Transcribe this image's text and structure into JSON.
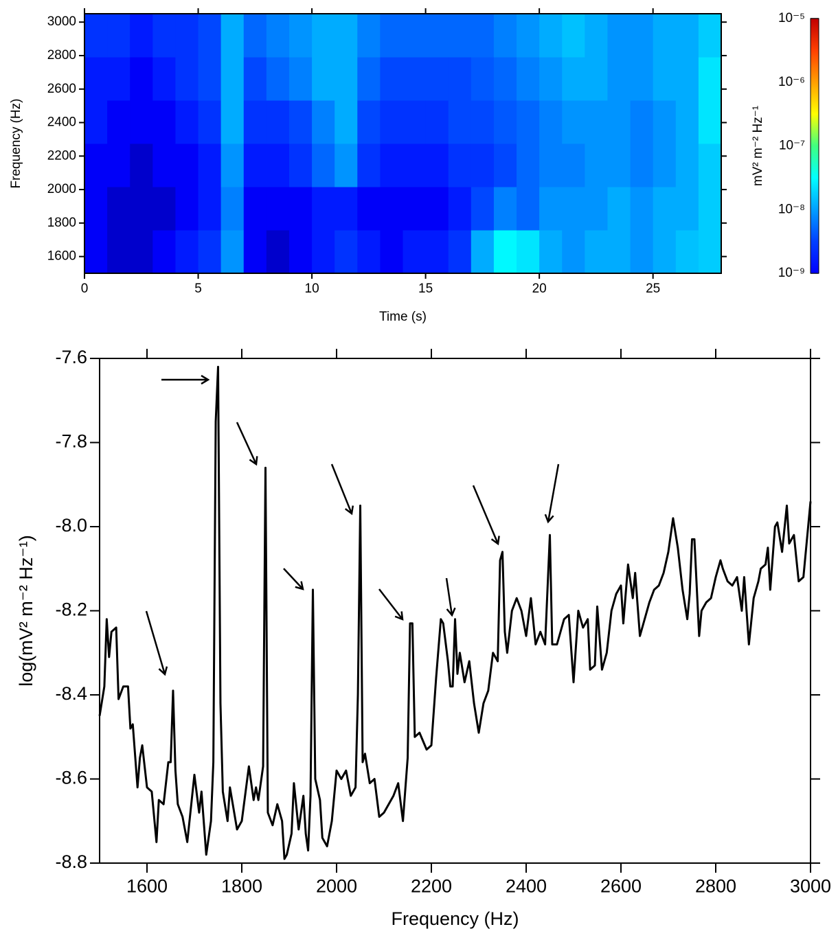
{
  "chart_data": [
    {
      "type": "heatmap",
      "xlabel": "Time (s)",
      "ylabel": "Frequency (Hz)",
      "xlim": [
        0,
        28
      ],
      "ylim": [
        1500,
        3050
      ],
      "xticks": [
        0,
        5,
        10,
        15,
        20,
        25
      ],
      "yticks": [
        1600,
        1800,
        2000,
        2200,
        2400,
        2600,
        2800,
        3000
      ],
      "z": [
        [
          3e-09,
          2e-09,
          2e-09,
          3e-09,
          4e-09,
          5e-09,
          1.2e-08,
          3e-09,
          2e-09,
          3e-09,
          4e-09,
          5e-09,
          4e-09,
          3e-09,
          4e-09,
          4e-09,
          5e-09,
          1.5e-08,
          3e-08,
          2.5e-08,
          1.5e-08,
          1.2e-08,
          1.5e-08,
          1.5e-08,
          1.2e-08,
          1.5e-08,
          1.8e-08,
          2e-08
        ],
        [
          3e-09,
          2e-09,
          2e-09,
          2e-09,
          3e-09,
          4e-09,
          1e-08,
          3e-09,
          3e-09,
          3e-09,
          4e-09,
          4e-09,
          3e-09,
          3e-09,
          3e-09,
          3e-09,
          4e-09,
          6e-09,
          1e-08,
          8e-09,
          1.2e-08,
          1.2e-08,
          1.2e-08,
          1.5e-08,
          1.2e-08,
          1.5e-08,
          1.5e-08,
          2e-08
        ],
        [
          3e-09,
          3e-09,
          2e-09,
          3e-09,
          3e-09,
          4e-09,
          1.2e-08,
          4e-09,
          4e-09,
          5e-09,
          8e-09,
          1.2e-08,
          5e-09,
          4e-09,
          4e-09,
          4e-09,
          5e-09,
          5e-09,
          6e-09,
          8e-09,
          1e-08,
          1e-08,
          1.2e-08,
          1.2e-08,
          1e-08,
          1.2e-08,
          1.5e-08,
          2e-08
        ],
        [
          4e-09,
          3e-09,
          3e-09,
          3e-09,
          4e-09,
          5e-09,
          1.5e-08,
          5e-09,
          5e-09,
          6e-09,
          1e-08,
          1.5e-08,
          6e-09,
          5e-09,
          5e-09,
          5e-09,
          6e-09,
          6e-09,
          7e-09,
          8e-09,
          1e-08,
          1.2e-08,
          1.2e-08,
          1.2e-08,
          1e-08,
          1.2e-08,
          1.5e-08,
          2.5e-08
        ],
        [
          4e-09,
          4e-09,
          3e-09,
          4e-09,
          5e-09,
          6e-09,
          1.5e-08,
          6e-09,
          8e-09,
          1e-08,
          1.5e-08,
          1.5e-08,
          8e-09,
          6e-09,
          6e-09,
          6e-09,
          6e-09,
          7e-09,
          8e-09,
          1e-08,
          1.2e-08,
          1.5e-08,
          1.5e-08,
          1.2e-08,
          1.2e-08,
          1.5e-08,
          1.5e-08,
          2.5e-08
        ],
        [
          5e-09,
          5e-09,
          4e-09,
          5e-09,
          5e-09,
          6e-09,
          1.5e-08,
          8e-09,
          1e-08,
          1.2e-08,
          1.5e-08,
          1.5e-08,
          1e-08,
          8e-09,
          8e-09,
          8e-09,
          8e-09,
          8e-09,
          1e-08,
          1.2e-08,
          1.5e-08,
          1.8e-08,
          1.5e-08,
          1.2e-08,
          1.2e-08,
          1.5e-08,
          1.5e-08,
          2e-08
        ]
      ],
      "colorbar": {
        "label": "mV² m⁻² Hz⁻¹",
        "log": true,
        "colormap": "jet",
        "clim": [
          1e-09,
          1e-05
        ],
        "ticks": [
          {
            "value": 1e-09,
            "label": "10⁻⁹"
          },
          {
            "value": 1e-08,
            "label": "10⁻⁸"
          },
          {
            "value": 1e-07,
            "label": "10⁻⁷"
          },
          {
            "value": 1e-06,
            "label": "10⁻⁶"
          },
          {
            "value": 1e-05,
            "label": "10⁻⁵"
          }
        ]
      }
    },
    {
      "type": "line",
      "xlabel": "Frequency (Hz)",
      "ylabel": "log(mV² m⁻² Hz⁻¹)",
      "xlim": [
        1500,
        3000
      ],
      "ylim": [
        -8.8,
        -7.6
      ],
      "xticks": [
        1600,
        1800,
        2000,
        2200,
        2400,
        2600,
        2800,
        3000
      ],
      "yticks": [
        -7.6,
        -7.8,
        {
          "value": -8,
          "label": "-8.0"
        },
        -8.2,
        -8.4,
        -8.6,
        -8.8
      ],
      "x": [
        1500,
        1510,
        1515,
        1520,
        1525,
        1535,
        1540,
        1550,
        1560,
        1565,
        1570,
        1580,
        1585,
        1590,
        1600,
        1610,
        1620,
        1625,
        1635,
        1645,
        1650,
        1655,
        1660,
        1665,
        1675,
        1685,
        1700,
        1710,
        1715,
        1725,
        1735,
        1740,
        1745,
        1750,
        1755,
        1760,
        1770,
        1775,
        1790,
        1800,
        1815,
        1825,
        1830,
        1835,
        1845,
        1850,
        1855,
        1865,
        1875,
        1885,
        1890,
        1895,
        1905,
        1910,
        1920,
        1930,
        1935,
        1940,
        1945,
        1950,
        1955,
        1965,
        1970,
        1980,
        1990,
        2000,
        2010,
        2020,
        2030,
        2040,
        2045,
        2050,
        2055,
        2060,
        2070,
        2080,
        2090,
        2100,
        2110,
        2120,
        2130,
        2140,
        2150,
        2155,
        2160,
        2165,
        2175,
        2190,
        2200,
        2210,
        2220,
        2225,
        2235,
        2240,
        2245,
        2250,
        2255,
        2260,
        2270,
        2280,
        2290,
        2300,
        2310,
        2320,
        2330,
        2340,
        2345,
        2350,
        2355,
        2360,
        2370,
        2380,
        2390,
        2400,
        2410,
        2420,
        2430,
        2440,
        2450,
        2455,
        2465,
        2480,
        2490,
        2500,
        2510,
        2520,
        2530,
        2535,
        2545,
        2550,
        2560,
        2570,
        2580,
        2590,
        2600,
        2605,
        2615,
        2625,
        2630,
        2640,
        2650,
        2660,
        2670,
        2680,
        2690,
        2700,
        2710,
        2720,
        2730,
        2740,
        2745,
        2750,
        2755,
        2765,
        2770,
        2780,
        2790,
        2800,
        2810,
        2815,
        2825,
        2835,
        2845,
        2855,
        2860,
        2870,
        2880,
        2890,
        2895,
        2905,
        2910,
        2915,
        2925,
        2930,
        2940,
        2950,
        2955,
        2965,
        2975,
        2985,
        3000
      ],
      "series": [
        {
          "color": "#000000",
          "values": [
            -8.45,
            -8.38,
            -8.22,
            -8.31,
            -8.25,
            -8.24,
            -8.41,
            -8.38,
            -8.38,
            -8.48,
            -8.47,
            -8.62,
            -8.55,
            -8.52,
            -8.62,
            -8.63,
            -8.75,
            -8.65,
            -8.66,
            -8.56,
            -8.56,
            -8.39,
            -8.58,
            -8.66,
            -8.69,
            -8.75,
            -8.59,
            -8.68,
            -8.63,
            -8.78,
            -8.7,
            -8.56,
            -7.75,
            -7.62,
            -8.42,
            -8.63,
            -8.7,
            -8.62,
            -8.72,
            -8.7,
            -8.57,
            -8.65,
            -8.62,
            -8.65,
            -8.57,
            -7.86,
            -8.68,
            -8.71,
            -8.66,
            -8.7,
            -8.79,
            -8.78,
            -8.73,
            -8.61,
            -8.72,
            -8.64,
            -8.73,
            -8.77,
            -8.64,
            -8.15,
            -8.6,
            -8.65,
            -8.74,
            -8.76,
            -8.7,
            -8.58,
            -8.6,
            -8.58,
            -8.64,
            -8.62,
            -8.4,
            -7.95,
            -8.56,
            -8.54,
            -8.61,
            -8.6,
            -8.69,
            -8.68,
            -8.66,
            -8.64,
            -8.61,
            -8.7,
            -8.55,
            -8.23,
            -8.23,
            -8.5,
            -8.49,
            -8.53,
            -8.52,
            -8.36,
            -8.22,
            -8.23,
            -8.32,
            -8.38,
            -8.38,
            -8.22,
            -8.35,
            -8.3,
            -8.37,
            -8.32,
            -8.42,
            -8.49,
            -8.42,
            -8.39,
            -8.3,
            -8.32,
            -8.08,
            -8.06,
            -8.25,
            -8.3,
            -8.2,
            -8.17,
            -8.2,
            -8.26,
            -8.17,
            -8.28,
            -8.25,
            -8.28,
            -8.02,
            -8.28,
            -8.28,
            -8.22,
            -8.21,
            -8.37,
            -8.2,
            -8.24,
            -8.22,
            -8.34,
            -8.33,
            -8.19,
            -8.34,
            -8.3,
            -8.2,
            -8.16,
            -8.14,
            -8.23,
            -8.09,
            -8.17,
            -8.11,
            -8.26,
            -8.22,
            -8.18,
            -8.15,
            -8.14,
            -8.11,
            -8.06,
            -7.98,
            -8.05,
            -8.15,
            -8.22,
            -8.16,
            -8.03,
            -8.03,
            -8.26,
            -8.2,
            -8.18,
            -8.17,
            -8.12,
            -8.08,
            -8.1,
            -8.13,
            -8.14,
            -8.12,
            -8.2,
            -8.12,
            -8.28,
            -8.17,
            -8.13,
            -8.1,
            -8.09,
            -8.05,
            -8.15,
            -8.0,
            -7.99,
            -8.06,
            -7.95,
            -8.04,
            -8.02,
            -8.13,
            -8.12,
            -7.94
          ]
        }
      ]
    }
  ]
}
